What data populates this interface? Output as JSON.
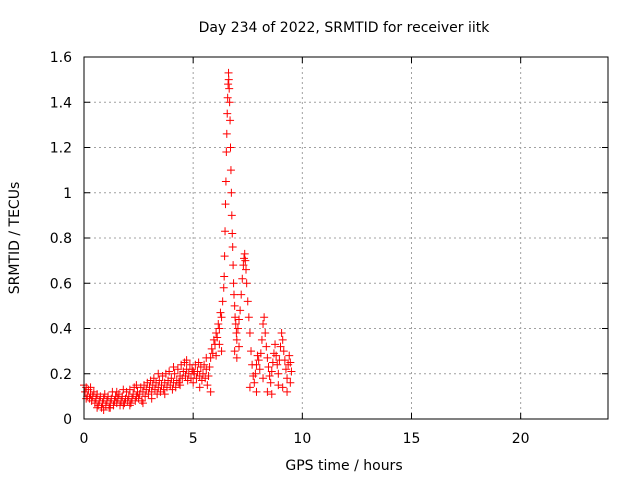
{
  "chart_data": {
    "type": "scatter",
    "title": "Day 234 of 2022, SRMTID for receiver iitk",
    "xlabel": "GPS time / hours",
    "ylabel": "SRMTID / TECUs",
    "xlim": [
      0,
      24
    ],
    "ylim": [
      0,
      1.6
    ],
    "xticks": [
      0,
      5,
      10,
      15,
      20
    ],
    "xtick_labels": [
      "0",
      "5",
      "10",
      "15",
      "20"
    ],
    "yticks": [
      0,
      0.2,
      0.4,
      0.6,
      0.8,
      1.0,
      1.2,
      1.4,
      1.6
    ],
    "ytick_labels": [
      "0",
      "0.2",
      "0.4",
      "0.6",
      "0.8",
      "1",
      "1.2",
      "1.4",
      "1.6"
    ],
    "grid": true,
    "marker": "+",
    "color": "#ff0000",
    "series": [
      {
        "name": "SRMTID",
        "points": [
          [
            0.0,
            0.15
          ],
          [
            0.05,
            0.12
          ],
          [
            0.1,
            0.14
          ],
          [
            0.15,
            0.1
          ],
          [
            0.2,
            0.13
          ],
          [
            0.25,
            0.09
          ],
          [
            0.3,
            0.11
          ],
          [
            0.35,
            0.08
          ],
          [
            0.4,
            0.1
          ],
          [
            0.45,
            0.12
          ],
          [
            0.5,
            0.07
          ],
          [
            0.55,
            0.09
          ],
          [
            0.6,
            0.11
          ],
          [
            0.65,
            0.06
          ],
          [
            0.7,
            0.08
          ],
          [
            0.75,
            0.1
          ],
          [
            0.8,
            0.05
          ],
          [
            0.85,
            0.07
          ],
          [
            0.9,
            0.09
          ],
          [
            0.95,
            0.11
          ],
          [
            1.0,
            0.06
          ],
          [
            1.05,
            0.08
          ],
          [
            1.1,
            0.1
          ],
          [
            1.15,
            0.05
          ],
          [
            1.2,
            0.07
          ],
          [
            1.25,
            0.09
          ],
          [
            1.3,
            0.12
          ],
          [
            1.35,
            0.06
          ],
          [
            1.4,
            0.08
          ],
          [
            1.45,
            0.1
          ],
          [
            1.5,
            0.07
          ],
          [
            1.55,
            0.09
          ],
          [
            1.6,
            0.11
          ],
          [
            1.65,
            0.06
          ],
          [
            1.7,
            0.08
          ],
          [
            1.75,
            0.1
          ],
          [
            1.8,
            0.13
          ],
          [
            1.85,
            0.07
          ],
          [
            1.9,
            0.09
          ],
          [
            1.95,
            0.12
          ],
          [
            2.0,
            0.08
          ],
          [
            2.05,
            0.1
          ],
          [
            2.1,
            0.13
          ],
          [
            2.15,
            0.07
          ],
          [
            2.2,
            0.09
          ],
          [
            2.25,
            0.11
          ],
          [
            2.3,
            0.14
          ],
          [
            2.35,
            0.08
          ],
          [
            2.4,
            0.1
          ],
          [
            2.45,
            0.12
          ],
          [
            2.5,
            0.09
          ],
          [
            2.55,
            0.11
          ],
          [
            2.6,
            0.14
          ],
          [
            2.65,
            0.08
          ],
          [
            2.7,
            0.12
          ],
          [
            2.75,
            0.15
          ],
          [
            2.8,
            0.1
          ],
          [
            2.85,
            0.13
          ],
          [
            2.9,
            0.16
          ],
          [
            2.95,
            0.11
          ],
          [
            3.0,
            0.14
          ],
          [
            3.05,
            0.17
          ],
          [
            3.1,
            0.12
          ],
          [
            3.15,
            0.15
          ],
          [
            3.2,
            0.18
          ],
          [
            3.25,
            0.13
          ],
          [
            3.3,
            0.16
          ],
          [
            3.35,
            0.11
          ],
          [
            3.4,
            0.14
          ],
          [
            3.45,
            0.17
          ],
          [
            3.5,
            0.12
          ],
          [
            3.55,
            0.15
          ],
          [
            3.6,
            0.19
          ],
          [
            3.65,
            0.13
          ],
          [
            3.7,
            0.16
          ],
          [
            3.75,
            0.2
          ],
          [
            3.8,
            0.14
          ],
          [
            3.85,
            0.17
          ],
          [
            3.9,
            0.21
          ],
          [
            3.95,
            0.15
          ],
          [
            4.0,
            0.18
          ],
          [
            4.05,
            0.13
          ],
          [
            4.1,
            0.16
          ],
          [
            4.15,
            0.2
          ],
          [
            4.2,
            0.14
          ],
          [
            4.25,
            0.17
          ],
          [
            4.3,
            0.22
          ],
          [
            4.35,
            0.16
          ],
          [
            4.4,
            0.19
          ],
          [
            4.45,
            0.24
          ],
          [
            4.5,
            0.18
          ],
          [
            4.55,
            0.21
          ],
          [
            4.6,
            0.25
          ],
          [
            4.65,
            0.19
          ],
          [
            4.7,
            0.22
          ],
          [
            4.75,
            0.17
          ],
          [
            4.8,
            0.2
          ],
          [
            4.85,
            0.24
          ],
          [
            4.9,
            0.18
          ],
          [
            4.95,
            0.22
          ],
          [
            5.0,
            0.16
          ],
          [
            5.05,
            0.2
          ],
          [
            5.1,
            0.24
          ],
          [
            5.15,
            0.18
          ],
          [
            5.2,
            0.21
          ],
          [
            5.25,
            0.25
          ],
          [
            5.3,
            0.19
          ],
          [
            5.35,
            0.23
          ],
          [
            5.4,
            0.17
          ],
          [
            5.45,
            0.2
          ],
          [
            5.5,
            0.24
          ],
          [
            5.55,
            0.18
          ],
          [
            5.6,
            0.22
          ],
          [
            5.65,
            0.15
          ],
          [
            5.7,
            0.19
          ],
          [
            5.75,
            0.23
          ],
          [
            5.8,
            0.27
          ],
          [
            5.85,
            0.31
          ],
          [
            5.9,
            0.29
          ],
          [
            5.95,
            0.35
          ],
          [
            6.0,
            0.33
          ],
          [
            6.05,
            0.38
          ],
          [
            6.1,
            0.36
          ],
          [
            6.15,
            0.42
          ],
          [
            6.2,
            0.4
          ],
          [
            6.25,
            0.47
          ],
          [
            6.3,
            0.45
          ],
          [
            6.35,
            0.52
          ],
          [
            6.4,
            0.58
          ],
          [
            6.42,
            0.63
          ],
          [
            6.44,
            0.72
          ],
          [
            6.46,
            0.83
          ],
          [
            6.48,
            0.95
          ],
          [
            6.5,
            1.05
          ],
          [
            6.52,
            1.18
          ],
          [
            6.54,
            1.26
          ],
          [
            6.56,
            1.35
          ],
          [
            6.58,
            1.42
          ],
          [
            6.6,
            1.48
          ],
          [
            6.62,
            1.53
          ],
          [
            6.63,
            1.5
          ],
          [
            6.65,
            1.46
          ],
          [
            6.67,
            1.4
          ],
          [
            6.69,
            1.32
          ],
          [
            6.71,
            1.2
          ],
          [
            6.73,
            1.1
          ],
          [
            6.75,
            1.0
          ],
          [
            6.77,
            0.9
          ],
          [
            6.79,
            0.82
          ],
          [
            6.81,
            0.76
          ],
          [
            6.83,
            0.68
          ],
          [
            6.85,
            0.6
          ],
          [
            6.87,
            0.55
          ],
          [
            6.9,
            0.5
          ],
          [
            6.92,
            0.45
          ],
          [
            6.95,
            0.42
          ],
          [
            6.98,
            0.38
          ],
          [
            7.0,
            0.35
          ],
          [
            7.05,
            0.4
          ],
          [
            7.1,
            0.44
          ],
          [
            7.15,
            0.48
          ],
          [
            7.2,
            0.55
          ],
          [
            7.25,
            0.62
          ],
          [
            7.3,
            0.68
          ],
          [
            7.33,
            0.71
          ],
          [
            7.36,
            0.73
          ],
          [
            7.39,
            0.7
          ],
          [
            7.42,
            0.66
          ],
          [
            7.45,
            0.6
          ],
          [
            7.5,
            0.52
          ],
          [
            7.55,
            0.45
          ],
          [
            7.6,
            0.38
          ],
          [
            7.65,
            0.3
          ],
          [
            7.7,
            0.24
          ],
          [
            7.75,
            0.19
          ],
          [
            7.8,
            0.16
          ],
          [
            7.85,
            0.2
          ],
          [
            7.9,
            0.24
          ],
          [
            7.95,
            0.28
          ],
          [
            8.0,
            0.26
          ],
          [
            8.05,
            0.22
          ],
          [
            8.1,
            0.29
          ],
          [
            8.15,
            0.35
          ],
          [
            8.2,
            0.42
          ],
          [
            8.25,
            0.45
          ],
          [
            8.3,
            0.38
          ],
          [
            8.35,
            0.32
          ],
          [
            8.4,
            0.27
          ],
          [
            8.45,
            0.23
          ],
          [
            8.5,
            0.19
          ],
          [
            8.55,
            0.16
          ],
          [
            8.6,
            0.21
          ],
          [
            8.65,
            0.25
          ],
          [
            8.7,
            0.29
          ],
          [
            8.75,
            0.33
          ],
          [
            8.8,
            0.28
          ],
          [
            8.85,
            0.24
          ],
          [
            8.9,
            0.2
          ],
          [
            8.95,
            0.26
          ],
          [
            9.0,
            0.32
          ],
          [
            9.05,
            0.38
          ],
          [
            9.1,
            0.35
          ],
          [
            9.15,
            0.3
          ],
          [
            9.2,
            0.26
          ],
          [
            9.25,
            0.22
          ],
          [
            9.3,
            0.18
          ],
          [
            9.35,
            0.24
          ],
          [
            9.4,
            0.28
          ],
          [
            9.45,
            0.25
          ],
          [
            9.5,
            0.21
          ],
          [
            0.1,
            0.09
          ],
          [
            0.3,
            0.14
          ],
          [
            0.6,
            0.05
          ],
          [
            0.9,
            0.04
          ],
          [
            1.2,
            0.05
          ],
          [
            1.5,
            0.12
          ],
          [
            1.8,
            0.06
          ],
          [
            2.1,
            0.06
          ],
          [
            2.4,
            0.15
          ],
          [
            2.7,
            0.07
          ],
          [
            3.1,
            0.09
          ],
          [
            3.4,
            0.2
          ],
          [
            3.7,
            0.11
          ],
          [
            4.1,
            0.23
          ],
          [
            4.4,
            0.15
          ],
          [
            4.7,
            0.26
          ],
          [
            5.0,
            0.21
          ],
          [
            5.3,
            0.14
          ],
          [
            5.6,
            0.27
          ],
          [
            5.8,
            0.12
          ],
          [
            6.05,
            0.28
          ],
          [
            6.2,
            0.33
          ],
          [
            6.3,
            0.3
          ],
          [
            6.9,
            0.3
          ],
          [
            7.0,
            0.27
          ],
          [
            7.1,
            0.32
          ],
          [
            7.6,
            0.14
          ],
          [
            7.9,
            0.12
          ],
          [
            8.2,
            0.18
          ],
          [
            8.4,
            0.12
          ],
          [
            8.6,
            0.11
          ],
          [
            8.9,
            0.15
          ],
          [
            9.1,
            0.14
          ],
          [
            9.3,
            0.12
          ],
          [
            9.45,
            0.16
          ]
        ]
      }
    ]
  }
}
